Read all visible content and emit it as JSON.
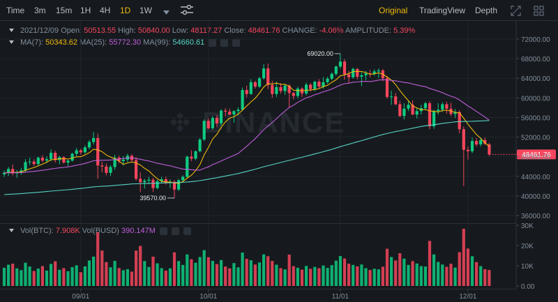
{
  "toolbar": {
    "time_label": "Time",
    "intervals": [
      "3m",
      "15m",
      "1H",
      "4H",
      "1D",
      "1W"
    ],
    "active_interval": "1D",
    "views": [
      "Original",
      "TradingView",
      "Depth"
    ],
    "active_view": "Original"
  },
  "info": {
    "date": "2021/12/09",
    "open_label": "Open:",
    "open": "50513.55",
    "high_label": "High:",
    "high": "50840.00",
    "low_label": "Low:",
    "low": "48117.27",
    "close_label": "Close:",
    "close": "48461.76",
    "change_label": "CHANGE:",
    "change": "-4.06%",
    "amplitude_label": "AMPLITUDE:",
    "amplitude": "5.39%"
  },
  "ma": {
    "ma7_label": "MA(7):",
    "ma7": "50343.62",
    "ma25_label": "MA(25):",
    "ma25": "55772.30",
    "ma99_label": "MA(99):",
    "ma99": "54660.61"
  },
  "vol": {
    "btc_label": "Vol(BTC):",
    "btc": "7.908K",
    "busd_label": "Vol(BUSD)",
    "busd": "390.147M"
  },
  "watermark": "BINANCE",
  "price_axis": {
    "ticks": [
      "72000.00",
      "68000.00",
      "64000.00",
      "60000.00",
      "56000.00",
      "52000.00",
      "48000.00",
      "44000.00",
      "40000.00",
      "36000.00"
    ],
    "current_price": "48461.76"
  },
  "volume_axis": {
    "ticks": [
      "30K",
      "20K",
      "10K",
      "0.00"
    ]
  },
  "date_axis": {
    "ticks": [
      "09/01",
      "10/01",
      "11/01",
      "12/01"
    ]
  },
  "annotations": {
    "high": "69020.00",
    "low": "39570.00"
  },
  "colors": {
    "up": "#0ecb81",
    "down": "#f6465d",
    "ma7": "#f0b90b",
    "ma25": "#c05edb",
    "ma99": "#57d3c6",
    "accent": "#f0b90b"
  },
  "chart_data": {
    "type": "candlestick",
    "period": "1D",
    "y_range": [
      35000,
      74000
    ],
    "volume_range": [
      0,
      30000
    ],
    "x_range": [
      "2021-08-14",
      "2021-12-09"
    ],
    "candles": [
      [
        44400,
        45200,
        43900,
        44700,
        9000
      ],
      [
        44700,
        45900,
        44100,
        45500,
        10500
      ],
      [
        45500,
        46400,
        44200,
        44600,
        11000
      ],
      [
        44600,
        45300,
        43700,
        44800,
        8700
      ],
      [
        44800,
        45700,
        44300,
        45200,
        7800
      ],
      [
        45200,
        47500,
        44800,
        46900,
        11500
      ],
      [
        46900,
        47800,
        46300,
        47000,
        9600
      ],
      [
        47000,
        47500,
        46100,
        46500,
        7400
      ],
      [
        46500,
        48000,
        46200,
        47800,
        8600
      ],
      [
        47800,
        48300,
        46900,
        47200,
        9800
      ],
      [
        47200,
        48100,
        46700,
        47500,
        7600
      ],
      [
        47500,
        49500,
        47100,
        48800,
        10900
      ],
      [
        48800,
        49200,
        46800,
        47300,
        12200
      ],
      [
        47300,
        48200,
        46500,
        47900,
        8000
      ],
      [
        47900,
        48100,
        46600,
        46800,
        8800
      ],
      [
        46800,
        47400,
        46100,
        47200,
        7300
      ],
      [
        47200,
        48800,
        47000,
        48600,
        9300
      ],
      [
        48600,
        49800,
        48100,
        49300,
        10200
      ],
      [
        49300,
        49600,
        48400,
        48900,
        6800
      ],
      [
        48900,
        50300,
        48600,
        49900,
        9700
      ],
      [
        49900,
        51400,
        49500,
        51000,
        12600
      ],
      [
        51000,
        53000,
        50500,
        51800,
        14500
      ],
      [
        51800,
        52700,
        43500,
        46200,
        26500
      ],
      [
        46200,
        47000,
        44800,
        46000,
        17500
      ],
      [
        46000,
        46600,
        44200,
        44700,
        11800
      ],
      [
        44700,
        46300,
        44100,
        45900,
        9200
      ],
      [
        45900,
        48400,
        45300,
        47800,
        12400
      ],
      [
        47800,
        48200,
        46700,
        47100,
        8900
      ],
      [
        47100,
        48100,
        46200,
        47400,
        7800
      ],
      [
        47400,
        48600,
        46900,
        48200,
        8300
      ],
      [
        48200,
        48500,
        47000,
        47300,
        7100
      ],
      [
        47300,
        47900,
        43100,
        43500,
        17500
      ],
      [
        43500,
        44800,
        40800,
        42800,
        19800
      ],
      [
        42800,
        43500,
        41500,
        43100,
        12300
      ],
      [
        43100,
        43900,
        42400,
        43300,
        9400
      ],
      [
        43300,
        43700,
        40800,
        41600,
        14500
      ],
      [
        41600,
        43300,
        41400,
        43000,
        11200
      ],
      [
        43000,
        43900,
        42600,
        43400,
        8800
      ],
      [
        43400,
        43900,
        42300,
        42700,
        7600
      ],
      [
        42700,
        43400,
        41600,
        42900,
        8700
      ],
      [
        42900,
        43200,
        39570,
        41300,
        16600
      ],
      [
        41300,
        43500,
        41000,
        43200,
        12300
      ],
      [
        43200,
        44200,
        42900,
        43900,
        10400
      ],
      [
        43900,
        48200,
        43600,
        48000,
        15600
      ],
      [
        48000,
        49300,
        47100,
        47600,
        13200
      ],
      [
        47600,
        49300,
        47300,
        49100,
        11500
      ],
      [
        49100,
        51800,
        48900,
        51500,
        14300
      ],
      [
        51500,
        55600,
        51200,
        55300,
        17700
      ],
      [
        55300,
        55800,
        53600,
        53800,
        14200
      ],
      [
        53800,
        56300,
        53500,
        55900,
        12400
      ],
      [
        55900,
        56500,
        54000,
        54800,
        10800
      ],
      [
        54800,
        57700,
        54300,
        57400,
        12800
      ],
      [
        57400,
        57900,
        56200,
        57200,
        9600
      ],
      [
        57200,
        57800,
        56500,
        56600,
        8700
      ],
      [
        56600,
        57500,
        54900,
        57300,
        11300
      ],
      [
        57300,
        58100,
        56500,
        57600,
        9200
      ],
      [
        57600,
        62100,
        57300,
        61600,
        16500
      ],
      [
        61600,
        62500,
        60100,
        60800,
        13400
      ],
      [
        60800,
        63800,
        60600,
        63200,
        12700
      ],
      [
        63200,
        63500,
        61900,
        62300,
        10600
      ],
      [
        62300,
        64300,
        62000,
        64000,
        11600
      ],
      [
        64000,
        66900,
        63700,
        66000,
        15600
      ],
      [
        66000,
        67000,
        61800,
        62600,
        14700
      ],
      [
        62600,
        63500,
        60000,
        60800,
        12400
      ],
      [
        60800,
        63300,
        60200,
        62200,
        10500
      ],
      [
        62200,
        63000,
        60900,
        61400,
        8800
      ],
      [
        61400,
        62800,
        60600,
        62500,
        8200
      ],
      [
        62500,
        62800,
        58000,
        61000,
        15500
      ],
      [
        61000,
        61200,
        59700,
        60400,
        9800
      ],
      [
        60400,
        62300,
        59900,
        61900,
        9000
      ],
      [
        61900,
        62200,
        60200,
        60900,
        8100
      ],
      [
        60900,
        63100,
        60500,
        62700,
        9900
      ],
      [
        62700,
        63000,
        61300,
        61800,
        8500
      ],
      [
        61800,
        63500,
        61400,
        63300,
        9400
      ],
      [
        63300,
        63800,
        62000,
        62300,
        8800
      ],
      [
        62300,
        64200,
        61900,
        63200,
        10100
      ],
      [
        63200,
        64300,
        62900,
        63900,
        8900
      ],
      [
        63900,
        65200,
        63600,
        64900,
        10300
      ],
      [
        64900,
        66600,
        64500,
        66400,
        12500
      ],
      [
        66400,
        69020,
        66000,
        67400,
        14800
      ],
      [
        67400,
        67900,
        63700,
        64800,
        13600
      ],
      [
        64800,
        65500,
        63100,
        64200,
        11000
      ],
      [
        64200,
        66200,
        63900,
        65900,
        10400
      ],
      [
        65900,
        66100,
        63800,
        64300,
        9700
      ],
      [
        64300,
        65200,
        62400,
        64600,
        10600
      ],
      [
        64600,
        65500,
        63600,
        65000,
        8800
      ],
      [
        65000,
        65700,
        64200,
        64900,
        7900
      ],
      [
        64900,
        65800,
        64500,
        65400,
        8500
      ],
      [
        65400,
        66000,
        64100,
        65600,
        8200
      ],
      [
        65600,
        65900,
        63400,
        64000,
        9500
      ],
      [
        64000,
        64500,
        59800,
        60200,
        18400
      ],
      [
        60200,
        61500,
        58600,
        60300,
        14300
      ],
      [
        60300,
        61000,
        58500,
        58700,
        12600
      ],
      [
        58700,
        59400,
        56100,
        56300,
        16200
      ],
      [
        56300,
        58900,
        55600,
        57800,
        13500
      ],
      [
        57800,
        59400,
        57300,
        58600,
        10400
      ],
      [
        58600,
        59500,
        56500,
        56600,
        12300
      ],
      [
        56600,
        58000,
        55800,
        57300,
        11100
      ],
      [
        57300,
        58600,
        56600,
        57900,
        9800
      ],
      [
        57900,
        59200,
        57500,
        58900,
        9600
      ],
      [
        58900,
        59300,
        53600,
        54200,
        22300
      ],
      [
        54200,
        57600,
        53700,
        57300,
        15600
      ],
      [
        57300,
        58900,
        56600,
        57600,
        11900
      ],
      [
        57600,
        59100,
        57100,
        58700,
        10600
      ],
      [
        58700,
        59200,
        56800,
        57800,
        9500
      ],
      [
        57800,
        59000,
        56300,
        56700,
        11000
      ],
      [
        56700,
        57700,
        55900,
        57100,
        9100
      ],
      [
        57100,
        57500,
        52800,
        53600,
        16700
      ],
      [
        53600,
        54200,
        42000,
        49400,
        28300
      ],
      [
        49400,
        50100,
        47400,
        49100,
        18500
      ],
      [
        49100,
        51900,
        48700,
        51200,
        14700
      ],
      [
        51200,
        51800,
        50100,
        50500,
        11800
      ],
      [
        50500,
        51900,
        50100,
        51400,
        9800
      ],
      [
        51400,
        51900,
        50400,
        50600,
        8300
      ],
      [
        50513.55,
        50840,
        48117.27,
        48461.76,
        7908
      ]
    ]
  }
}
